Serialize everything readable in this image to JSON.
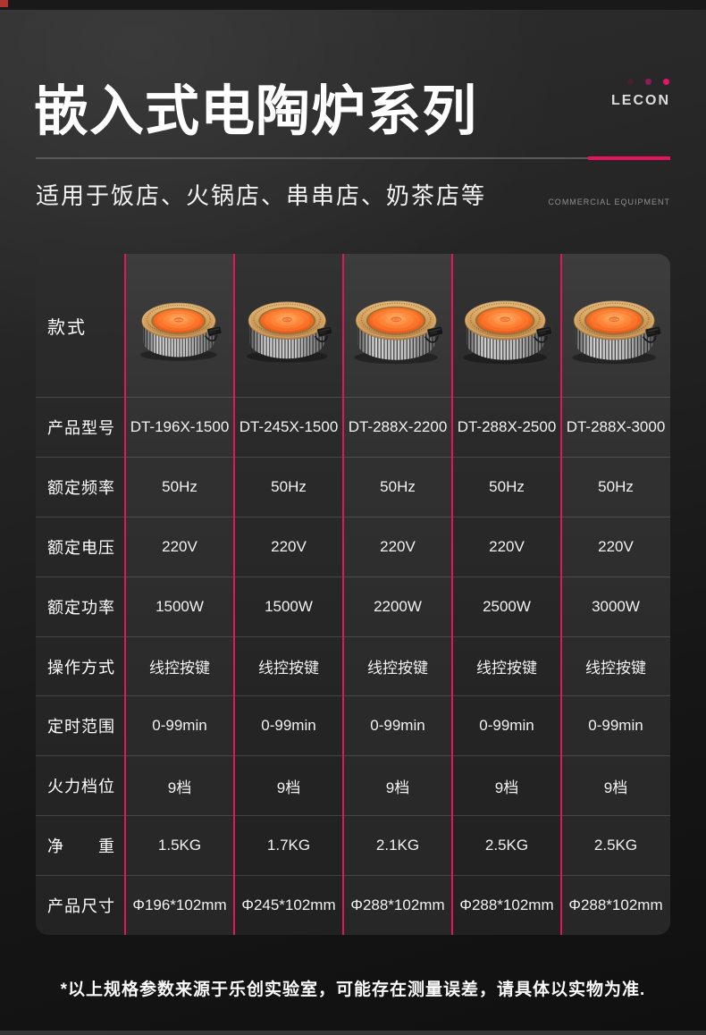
{
  "page": {
    "title": "嵌入式电陶炉系列",
    "subtitle": "适用于饭店、火锅店、串串店、奶茶店等",
    "brand": "LECON",
    "brand_tagline": "COMMERCIAL EQUIPMENT",
    "disclaimer": "*以上规格参数来源于乐创实验室，可能存在测量误差，请具体以实物为准.",
    "accent_color": "#e8135f"
  },
  "table": {
    "style_label": "款式",
    "product_image": "embedded-ceramic-stove-photo",
    "models": [
      "DT-196X-1500",
      "DT-245X-1500",
      "DT-288X-2200",
      "DT-288X-2500",
      "DT-288X-3000"
    ],
    "rows": [
      {
        "label": "产品型号",
        "values": [
          "DT-196X-1500",
          "DT-245X-1500",
          "DT-288X-2200",
          "DT-288X-2500",
          "DT-288X-3000"
        ]
      },
      {
        "label": "额定频率",
        "values": [
          "50Hz",
          "50Hz",
          "50Hz",
          "50Hz",
          "50Hz"
        ]
      },
      {
        "label": "额定电压",
        "values": [
          "220V",
          "220V",
          "220V",
          "220V",
          "220V"
        ]
      },
      {
        "label": "额定功率",
        "values": [
          "1500W",
          "1500W",
          "2200W",
          "2500W",
          "3000W"
        ]
      },
      {
        "label": "操作方式",
        "values": [
          "线控按键",
          "线控按键",
          "线控按键",
          "线控按键",
          "线控按键"
        ]
      },
      {
        "label": "定时范围",
        "values": [
          "0-99min",
          "0-99min",
          "0-99min",
          "0-99min",
          "0-99min"
        ]
      },
      {
        "label": "火力档位",
        "values": [
          "9档",
          "9档",
          "9档",
          "9档",
          "9档"
        ]
      },
      {
        "label": "净　　重",
        "values": [
          "1.5KG",
          "1.7KG",
          "2.1KG",
          "2.5KG",
          "2.5KG"
        ]
      },
      {
        "label": "产品尺寸",
        "values": [
          "Φ196*102mm",
          "Φ245*102mm",
          "Φ288*102mm",
          "Φ288*102mm",
          "Φ288*102mm"
        ]
      }
    ]
  }
}
